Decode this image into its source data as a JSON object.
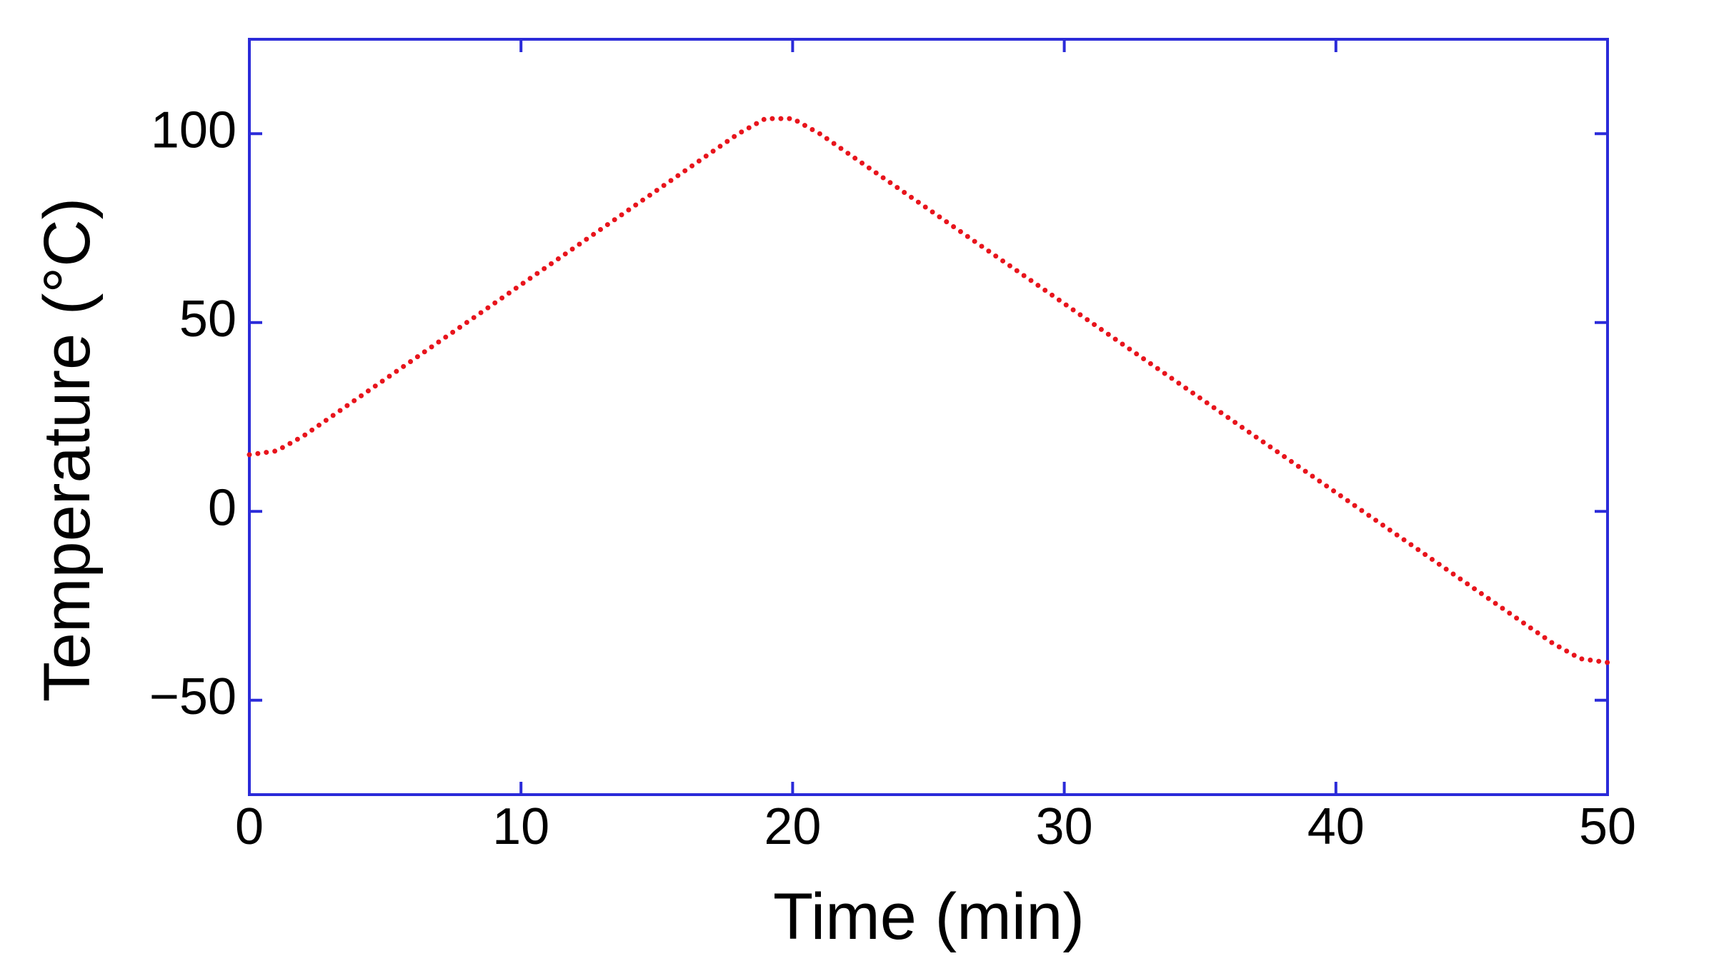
{
  "chart_data": {
    "type": "line",
    "xlabel": "Time (min)",
    "ylabel": "Temperature (°C)",
    "x": [
      0,
      1,
      2,
      3,
      4,
      5,
      6,
      7,
      8,
      9,
      10,
      11,
      12,
      13,
      14,
      15,
      16,
      17,
      18,
      19,
      20,
      21,
      22,
      23,
      24,
      25,
      26,
      27,
      28,
      29,
      30,
      31,
      32,
      33,
      34,
      35,
      36,
      37,
      38,
      39,
      40,
      41,
      42,
      43,
      44,
      45,
      46,
      47,
      48,
      49,
      50
    ],
    "series": [
      {
        "color": "#e8141c",
        "values": [
          15,
          16,
          20,
          25,
          30,
          35,
          40,
          45,
          50,
          55,
          60,
          65,
          70,
          75,
          80,
          85,
          90,
          95,
          100,
          104,
          104,
          100,
          95,
          90,
          85,
          80,
          75,
          70,
          65,
          60,
          55,
          50,
          45,
          40,
          35,
          30,
          25,
          20,
          15,
          10,
          5,
          0,
          -5,
          -10,
          -15,
          -20,
          -25,
          -30,
          -35,
          -39,
          -40
        ]
      }
    ],
    "xlim": [
      0,
      50
    ],
    "xticks": [
      0,
      10,
      20,
      30,
      40,
      50
    ],
    "ylim": [
      -75,
      125
    ],
    "yticks": [
      {
        "value": -50,
        "label": "−50"
      },
      0,
      50,
      100
    ],
    "axis_color": "#2b2bd9",
    "grid": false
  }
}
